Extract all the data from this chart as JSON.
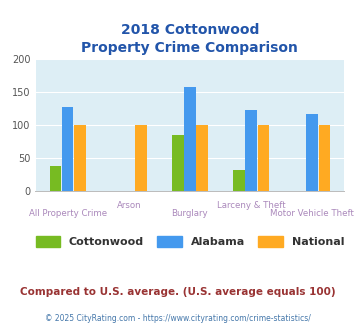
{
  "title_line1": "2018 Cottonwood",
  "title_line2": "Property Crime Comparison",
  "categories": [
    "All Property Crime",
    "Arson",
    "Burglary",
    "Larceny & Theft",
    "Motor Vehicle Theft"
  ],
  "cottonwood": [
    38,
    0,
    85,
    32,
    0
  ],
  "alabama": [
    128,
    0,
    158,
    123,
    118
  ],
  "national": [
    100,
    100,
    100,
    100,
    100
  ],
  "bar_color_cottonwood": "#77bb22",
  "bar_color_alabama": "#4499ee",
  "bar_color_national": "#ffaa22",
  "ylim": [
    0,
    200
  ],
  "yticks": [
    0,
    50,
    100,
    150,
    200
  ],
  "bg_color": "#ddeef5",
  "title_color": "#2255aa",
  "xlabel_color_odd": "#aa88bb",
  "xlabel_color_even": "#aa88bb",
  "legend_label_color": "#333333",
  "footer_text": "Compared to U.S. average. (U.S. average equals 100)",
  "footer_color": "#993333",
  "credit_text": "© 2025 CityRating.com - https://www.cityrating.com/crime-statistics/",
  "credit_color": "#4477aa"
}
